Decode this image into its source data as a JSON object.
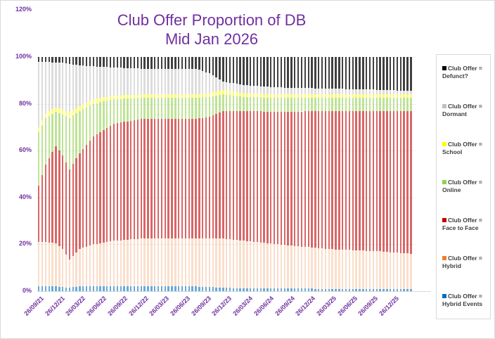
{
  "chart_data": {
    "type": "bar",
    "stacked": true,
    "percent_stacked": true,
    "title": "Club Offer Proportion of DB",
    "subtitle": "Mid Jan 2026",
    "xlabel": "",
    "ylabel": "",
    "ylim": [
      0,
      120
    ],
    "yticks": [
      "0%",
      "20%",
      "40%",
      "60%",
      "80%",
      "100%",
      "120%"
    ],
    "xtick_labels": [
      "26/09/21",
      "26/12/21",
      "26/03/22",
      "26/06/22",
      "26/09/22",
      "26/12/22",
      "26/03/23",
      "26/06/23",
      "26/09/23",
      "26/12/23",
      "26/03/24",
      "26/06/24",
      "26/09/24",
      "26/12/24",
      "26/03/25",
      "26/06/25",
      "26/09/25",
      "26/12/25"
    ],
    "grid": true,
    "legend_position": "right",
    "n_bars": 110,
    "keyframes_note": "cumulative boundaries (%) at bar index, interpolated between keyframes",
    "keyframes": [
      {
        "i": 0,
        "cum": [
          2.0,
          21.0,
          45.0,
          68.0,
          70.0,
          98.0,
          100
        ]
      },
      {
        "i": 2,
        "cum": [
          2.0,
          21.0,
          54.0,
          74.0,
          76.0,
          98.0,
          100
        ]
      },
      {
        "i": 5,
        "cum": [
          2.0,
          20.5,
          62.0,
          76.5,
          78.5,
          97.5,
          100
        ]
      },
      {
        "i": 7,
        "cum": [
          1.8,
          18.0,
          58.0,
          75.5,
          77.5,
          97.5,
          100
        ]
      },
      {
        "i": 9,
        "cum": [
          1.5,
          13.5,
          52.0,
          74.0,
          76.5,
          97.0,
          100
        ]
      },
      {
        "i": 12,
        "cum": [
          2.0,
          18.0,
          59.0,
          77.0,
          79.0,
          96.5,
          100
        ]
      },
      {
        "i": 16,
        "cum": [
          2.0,
          20.0,
          66.0,
          80.0,
          82.0,
          96.0,
          100
        ]
      },
      {
        "i": 22,
        "cum": [
          2.0,
          21.5,
          71.5,
          82.0,
          83.5,
          95.5,
          100
        ]
      },
      {
        "i": 30,
        "cum": [
          2.0,
          22.5,
          73.5,
          82.5,
          84.0,
          95.0,
          100
        ]
      },
      {
        "i": 46,
        "cum": [
          2.0,
          22.5,
          73.5,
          82.5,
          84.0,
          95.0,
          100
        ]
      },
      {
        "i": 50,
        "cum": [
          1.8,
          22.5,
          74.5,
          83.0,
          84.5,
          93.0,
          100
        ]
      },
      {
        "i": 54,
        "cum": [
          1.5,
          22.5,
          77.0,
          84.0,
          86.0,
          89.5,
          100
        ]
      },
      {
        "i": 60,
        "cum": [
          1.2,
          21.5,
          77.0,
          83.0,
          84.5,
          88.0,
          100
        ]
      },
      {
        "i": 70,
        "cum": [
          1.2,
          20.0,
          76.5,
          82.5,
          84.0,
          87.0,
          100
        ]
      },
      {
        "i": 85,
        "cum": [
          1.0,
          18.0,
          77.0,
          82.5,
          84.0,
          86.5,
          100
        ]
      },
      {
        "i": 100,
        "cum": [
          1.0,
          17.0,
          77.0,
          82.5,
          84.0,
          86.0,
          100
        ]
      },
      {
        "i": 109,
        "cum": [
          1.0,
          16.0,
          77.0,
          82.5,
          84.0,
          85.5,
          100
        ]
      }
    ],
    "series": [
      {
        "name": "Club Offer = Hybrid Events",
        "color": "#0070c0",
        "values_start": 2.0,
        "values_end": 1.0
      },
      {
        "name": "Club Offer = Hybrid",
        "color": "#ed7d31",
        "values_start": 19.0,
        "values_end": 15.0
      },
      {
        "name": "Club Offer = Face to Face",
        "color": "#c00000",
        "values_start": 24.0,
        "values_end": 61.0
      },
      {
        "name": "Club Offer = Online",
        "color": "#92d050",
        "values_start": 23.0,
        "values_end": 5.5
      },
      {
        "name": "Club Offer = School",
        "color": "#ffff00",
        "values_start": 2.0,
        "values_end": 1.5
      },
      {
        "name": "Club Offer = Dormant",
        "color": "#bfbfbf",
        "values_start": 28.0,
        "values_end": 1.5
      },
      {
        "name": "Club Offer = Defunct?",
        "color": "#000000",
        "values_start": 2.0,
        "values_end": 14.5
      }
    ]
  },
  "title_line1": "Club Offer Proportion of DB",
  "title_line2": "Mid Jan 2026",
  "legend": [
    {
      "label_line1": "Club Offer =",
      "label_line2": "Defunct?",
      "color": "#000000"
    },
    {
      "label_line1": "Club Offer =",
      "label_line2": "Dormant",
      "color": "#bfbfbf"
    },
    {
      "label_line1": "Club Offer =",
      "label_line2": "School",
      "color": "#ffff00"
    },
    {
      "label_line1": "Club Offer =",
      "label_line2": "Online",
      "color": "#92d050"
    },
    {
      "label_line1": "Club Offer =",
      "label_line2": "Face to Face",
      "color": "#c00000"
    },
    {
      "label_line1": "Club Offer =",
      "label_line2": "Hybrid",
      "color": "#ed7d31"
    },
    {
      "label_line1": "Club Offer =",
      "label_line2": "Hybrid Events",
      "color": "#0070c0"
    }
  ]
}
